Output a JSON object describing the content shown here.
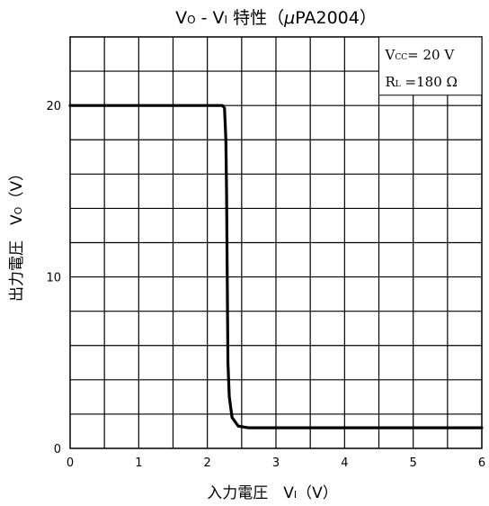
{
  "chart_data": {
    "type": "line",
    "title": {
      "parts": [
        {
          "text": "V",
          "sub": false
        },
        {
          "text": "O",
          "sub": true
        },
        {
          "text": " - V",
          "sub": false
        },
        {
          "text": "I",
          "sub": true
        },
        {
          "text": " 特性（",
          "sub": false
        },
        {
          "text": "μ",
          "sub": false,
          "italic": true
        },
        {
          "text": "PA2004）",
          "sub": false
        }
      ]
    },
    "xlabel": {
      "parts": [
        {
          "text": "入力電圧　V",
          "sub": false
        },
        {
          "text": "I",
          "sub": true
        },
        {
          "text": "（V）",
          "sub": false
        }
      ]
    },
    "ylabel": {
      "parts": [
        {
          "text": "出力電圧　V",
          "sub": false
        },
        {
          "text": "O",
          "sub": true
        },
        {
          "text": "（V）",
          "sub": false
        }
      ]
    },
    "xlim": [
      0,
      6
    ],
    "ylim": [
      0,
      24
    ],
    "x_ticks": [
      {
        "value": 0,
        "label": "0"
      },
      {
        "value": 1,
        "label": "1"
      },
      {
        "value": 2,
        "label": "2"
      },
      {
        "value": 3,
        "label": "3"
      },
      {
        "value": 4,
        "label": "4"
      },
      {
        "value": 5,
        "label": "5"
      },
      {
        "value": 6,
        "label": "6"
      }
    ],
    "y_ticks": [
      {
        "value": 0,
        "label": "0"
      },
      {
        "value": 10,
        "label": "10"
      },
      {
        "value": 20,
        "label": "20"
      }
    ],
    "grid": {
      "x_step": 0.5,
      "y_step": 2
    },
    "legend_box": {
      "placement": "top-right",
      "lines": [
        [
          {
            "text": "V",
            "sub": false
          },
          {
            "text": "CC",
            "sub": true
          },
          {
            "text": "=  20  V",
            "sub": false
          }
        ],
        [
          {
            "text": "R",
            "sub": false
          },
          {
            "text": "L",
            "sub": true
          },
          {
            "text": " =180  Ω",
            "sub": false
          }
        ]
      ]
    },
    "series": [
      {
        "x": [
          0,
          1.0,
          2.0,
          2.22,
          2.25,
          2.27,
          2.28,
          2.29,
          2.3,
          2.32,
          2.36,
          2.45,
          2.6,
          3.0,
          4.0,
          5.0,
          6.0
        ],
        "y": [
          20.0,
          20.0,
          20.0,
          20.0,
          19.85,
          18.0,
          15.0,
          10.0,
          5.0,
          3.0,
          1.8,
          1.3,
          1.2,
          1.2,
          1.2,
          1.2,
          1.2
        ],
        "color": "#000000"
      }
    ]
  }
}
